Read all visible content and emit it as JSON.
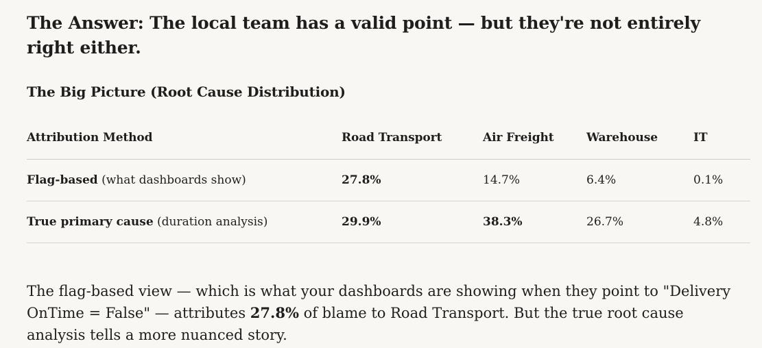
{
  "answer_heading": "The Answer: The local team has a valid point — but they're not entirely right either.",
  "section_heading": "The Big Picture (Root Cause Distribution)",
  "table": {
    "headers": [
      "Attribution Method",
      "Road Transport",
      "Air Freight",
      "Warehouse",
      "IT"
    ],
    "rows": [
      {
        "method_bold": "Flag-based",
        "method_note": " (what dashboards show)",
        "road": "27.8%",
        "air": "14.7%",
        "warehouse": "6.4%",
        "it": "0.1%"
      },
      {
        "method_bold": "True primary cause",
        "method_note": " (duration analysis)",
        "road": "29.9%",
        "air": "38.3%",
        "warehouse": "26.7%",
        "it": "4.8%"
      }
    ]
  },
  "summary": {
    "part1": "The flag-based view — which is what your dashboards are showing when they point to \"Delivery OnTime = False\" — attributes ",
    "highlight": "27.8%",
    "part2": " of blame to Road Transport. But the true root cause analysis tells a more nuanced story."
  }
}
